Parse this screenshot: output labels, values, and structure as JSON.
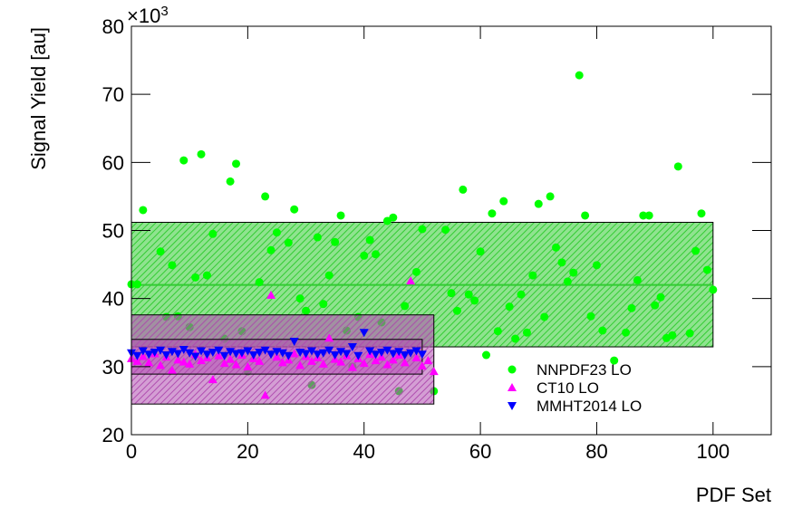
{
  "chart_data": {
    "type": "scatter",
    "y_label": "Signal Yield [au]",
    "x_label": "PDF Set",
    "y_multiplier": "×10",
    "y_multiplier_exponent": "3",
    "xlim": [
      0,
      110
    ],
    "xticks": [
      0,
      20,
      40,
      60,
      80,
      100
    ],
    "ylim": [
      20,
      80
    ],
    "yticks": [
      20,
      30,
      40,
      50,
      60,
      70,
      80
    ],
    "legend_corner": "lower-right",
    "series": [
      {
        "name": "NNPDF23 LO",
        "color": "#00ff00",
        "marker": "circle",
        "x": [
          0,
          1,
          2,
          5,
          6,
          7,
          8,
          9,
          10,
          11,
          12,
          13,
          14,
          16,
          17,
          18,
          19,
          20,
          22,
          23,
          24,
          25,
          27,
          28,
          29,
          30,
          31,
          32,
          33,
          34,
          35,
          36,
          37,
          38,
          39,
          40,
          41,
          42,
          43,
          44,
          45,
          46,
          47,
          49,
          50,
          52,
          54,
          55,
          56,
          57,
          58,
          59,
          60,
          61,
          62,
          63,
          64,
          65,
          66,
          67,
          68,
          69,
          70,
          71,
          72,
          73,
          74,
          75,
          76,
          77,
          78,
          79,
          80,
          81,
          83,
          85,
          86,
          87,
          88,
          89,
          90,
          91,
          92,
          93,
          94,
          96,
          97,
          98,
          99,
          100
        ],
        "values": [
          42.1,
          42.1,
          53.0,
          46.9,
          37.3,
          44.9,
          37.4,
          60.3,
          35.8,
          43.1,
          61.2,
          43.4,
          49.5,
          34.1,
          57.2,
          59.8,
          35.2,
          29.3,
          42.4,
          55.0,
          47.1,
          49.7,
          48.2,
          53.1,
          40.0,
          38.2,
          27.3,
          49.0,
          39.2,
          43.4,
          48.3,
          52.2,
          35.3,
          30.0,
          37.3,
          46.3,
          48.6,
          46.5,
          36.5,
          51.4,
          51.9,
          26.4,
          38.9,
          43.9,
          50.2,
          26.4,
          50.1,
          40.8,
          38.2,
          56.0,
          40.6,
          39.7,
          46.9,
          31.7,
          52.5,
          35.2,
          54.3,
          38.8,
          34.1,
          40.6,
          35.0,
          43.4,
          53.9,
          37.3,
          55.0,
          47.5,
          45.3,
          42.5,
          43.8,
          72.8,
          52.2,
          37.4,
          44.9,
          35.3,
          30.9,
          35.0,
          38.6,
          42.7,
          52.2,
          52.2,
          39.0,
          40.2,
          34.2,
          34.6,
          59.4,
          34.9,
          47.0,
          52.5,
          44.2,
          41.3
        ]
      },
      {
        "name": "CT10 LO",
        "color": "#ff00ff",
        "marker": "triangle-up",
        "x": [
          0,
          1,
          2,
          3,
          4,
          5,
          6,
          7,
          8,
          9,
          10,
          11,
          12,
          13,
          14,
          15,
          16,
          17,
          18,
          19,
          20,
          21,
          22,
          23,
          24,
          25,
          26,
          27,
          28,
          29,
          30,
          31,
          32,
          33,
          34,
          35,
          36,
          37,
          38,
          39,
          40,
          41,
          42,
          43,
          44,
          45,
          46,
          47,
          48,
          49,
          50,
          51,
          52
        ],
        "values": [
          31.2,
          30.8,
          31.5,
          30.6,
          31.9,
          30.2,
          31.4,
          29.5,
          31.0,
          30.7,
          30.4,
          31.8,
          30.9,
          31.3,
          28.1,
          31.6,
          30.5,
          31.1,
          30.3,
          31.7,
          30.0,
          31.2,
          30.8,
          25.8,
          40.5,
          31.4,
          30.6,
          31.0,
          31.9,
          30.2,
          31.5,
          30.8,
          31.3,
          30.4,
          34.2,
          31.1,
          30.7,
          31.6,
          29.9,
          31.2,
          30.5,
          31.8,
          30.9,
          31.4,
          30.3,
          31.0,
          31.7,
          30.6,
          42.6,
          31.3,
          30.1,
          30.9,
          29.3
        ]
      },
      {
        "name": "MMHT2014 LO",
        "color": "#0000ff",
        "marker": "triangle-down",
        "x": [
          0,
          1,
          2,
          3,
          4,
          5,
          6,
          7,
          8,
          9,
          10,
          11,
          12,
          13,
          14,
          15,
          16,
          17,
          18,
          19,
          20,
          21,
          22,
          23,
          24,
          25,
          26,
          27,
          28,
          29,
          30,
          31,
          32,
          33,
          34,
          35,
          36,
          37,
          38,
          39,
          40,
          41,
          42,
          43,
          44,
          45,
          46,
          47,
          48,
          49,
          50
        ],
        "values": [
          32.0,
          31.6,
          32.3,
          31.8,
          32.1,
          32.4,
          31.7,
          32.2,
          31.9,
          32.5,
          32.0,
          31.5,
          32.3,
          31.8,
          32.1,
          32.4,
          31.6,
          32.2,
          31.9,
          32.0,
          32.3,
          31.7,
          32.1,
          32.4,
          31.8,
          32.2,
          32.0,
          31.6,
          33.7,
          32.1,
          31.9,
          32.3,
          31.8,
          32.0,
          32.4,
          31.7,
          32.2,
          31.9,
          32.9,
          31.6,
          35.0,
          32.3,
          31.8,
          32.1,
          32.4,
          31.9,
          32.2,
          31.7,
          32.0,
          32.3,
          31.8
        ]
      }
    ],
    "bands": [
      {
        "xmin": 0,
        "xmax": 100,
        "low": 32.9,
        "high": 51.2,
        "center": 42.0,
        "color": "#33cc33"
      },
      {
        "xmin": 0,
        "xmax": 52,
        "low": 24.5,
        "high": 37.6,
        "color": "#b04fb0"
      },
      {
        "xmin": 0,
        "xmax": 50,
        "low": 28.9,
        "high": 34.0,
        "color": "#b04fb0"
      }
    ]
  }
}
